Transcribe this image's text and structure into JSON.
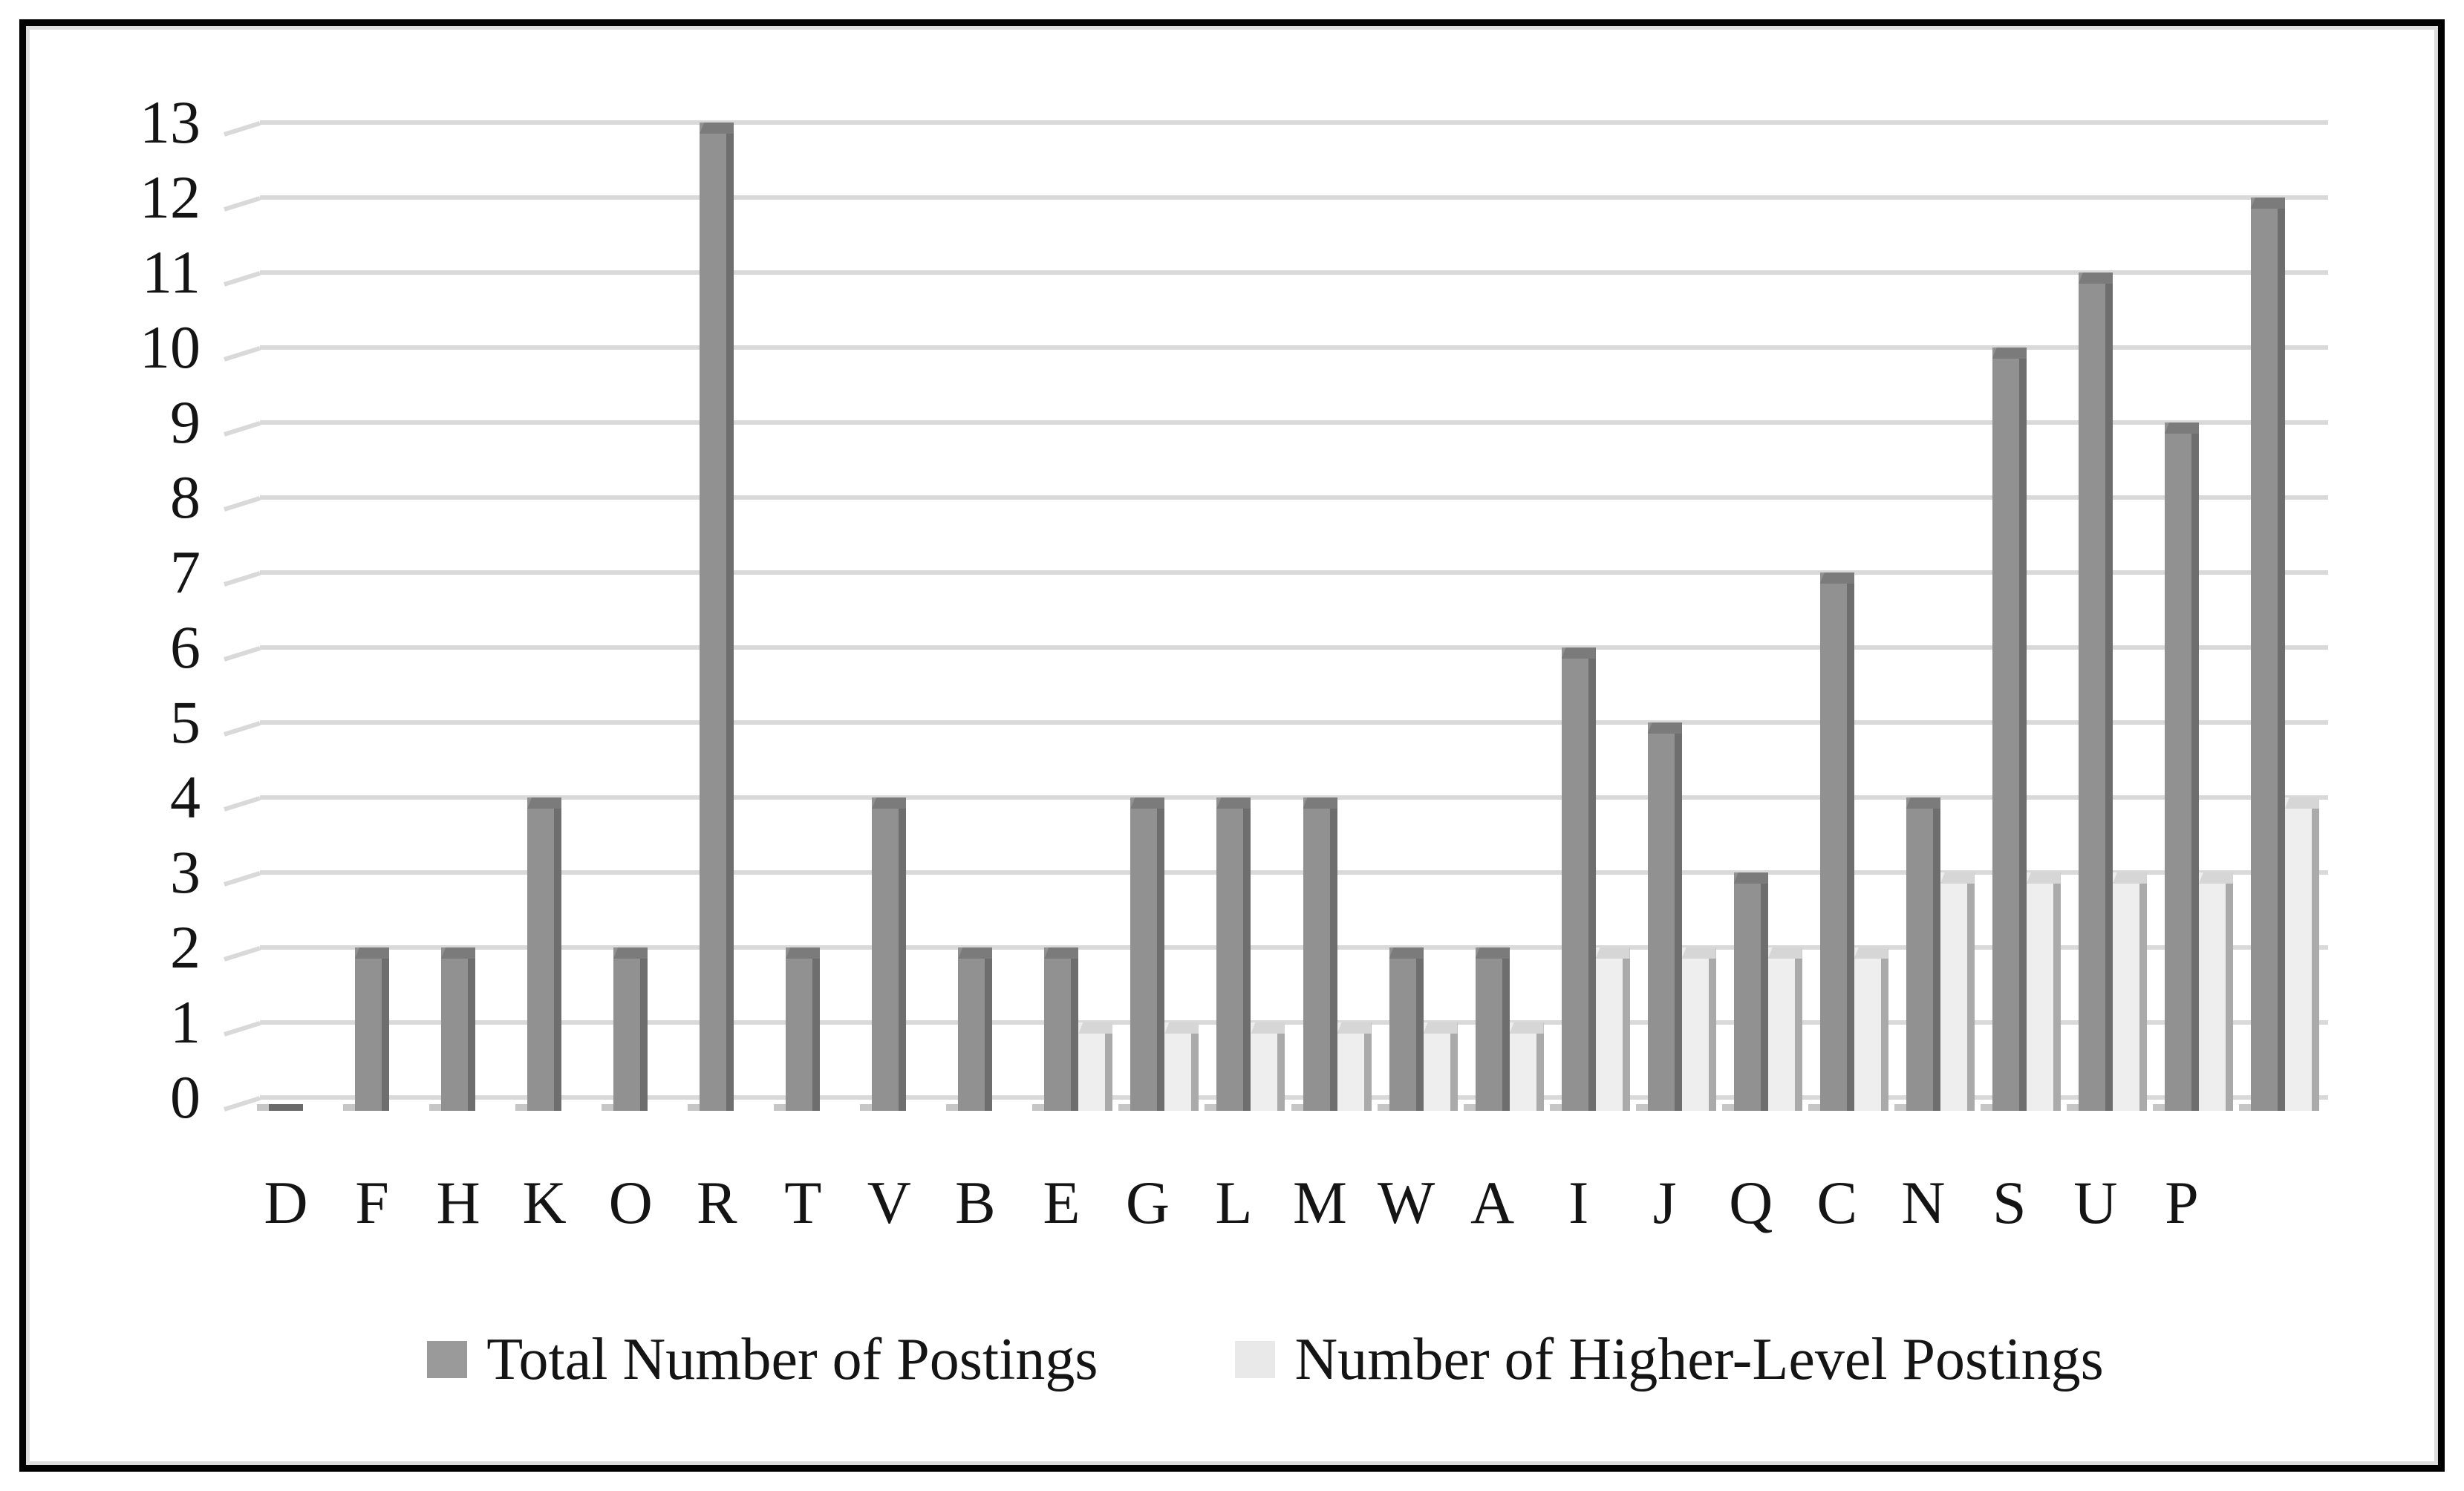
{
  "chart_data": {
    "type": "bar",
    "title": "",
    "categories": [
      "D",
      "F",
      "H",
      "K",
      "O",
      "R",
      "T",
      "V",
      "B",
      "E",
      "G",
      "L",
      "M",
      "W",
      "A",
      "I",
      "J",
      "Q",
      "C",
      "N",
      "S",
      "U",
      "P",
      ""
    ],
    "series": [
      {
        "name": "Total Number of Postings",
        "values": [
          0,
          2,
          2,
          4,
          2,
          13,
          2,
          4,
          2,
          2,
          4,
          4,
          4,
          2,
          2,
          6,
          5,
          3,
          7,
          4,
          10,
          11,
          9,
          12
        ],
        "face_color": "#919191",
        "edge_color": "#6e6e6e",
        "cap_color": "#7b7b7b",
        "swatch_color": "#9a9a9a"
      },
      {
        "name": "Number of Higher-Level Postings",
        "values": [
          0,
          0,
          0,
          0,
          0,
          0,
          0,
          0,
          0,
          1,
          1,
          1,
          1,
          1,
          1,
          2,
          2,
          2,
          2,
          3,
          3,
          3,
          3,
          4
        ],
        "face_color": "#eeeeee",
        "edge_color": "#aaaaaa",
        "cap_color": "#d6d6d6",
        "swatch_color": "#e9e9e9"
      }
    ],
    "y_ticks": [
      "0",
      "1",
      "2",
      "3",
      "4",
      "5",
      "6",
      "7",
      "8",
      "9",
      "10",
      "11",
      "12",
      "13"
    ],
    "ylim": [
      0,
      13
    ],
    "grid": "horizontal",
    "gridline_color": "#d9d9d9",
    "legend_position": "bottom",
    "zero_sliver_color": "#6a6a6a",
    "text_color": "#141414",
    "frame_color": "#000000"
  }
}
